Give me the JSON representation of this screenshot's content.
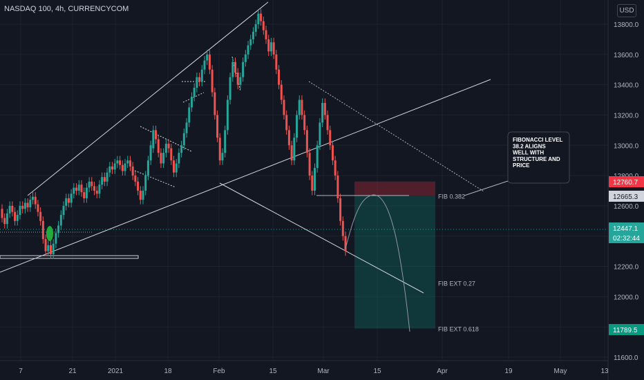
{
  "header": {
    "title": "NASDAQ 100, 4h, CURRENCYCOM",
    "currency": "USD"
  },
  "chart_data": {
    "type": "candlestick",
    "ylim": [
      11600,
      13900
    ],
    "y_ticks": [
      11600,
      11800,
      12000,
      12200,
      12400,
      12600,
      12800,
      13000,
      13200,
      13400,
      13600,
      13800
    ],
    "x_ticks": [
      "7",
      "21",
      "2021",
      "18",
      "Feb",
      "15",
      "Mar",
      "15",
      "Apr",
      "19",
      "May",
      "13"
    ],
    "price_labels": [
      {
        "value": "12760.7",
        "color": "#f23645"
      },
      {
        "value": "12665.3",
        "color": "#d1d4dc"
      },
      {
        "value": "12447.1",
        "time": "02:32:44",
        "color": "#26a69a"
      },
      {
        "value": "11789.5",
        "color": "#089981"
      }
    ],
    "annotations": [
      {
        "text": "FIB 0.382",
        "price": 12665
      },
      {
        "text": "FIB EXT 0.27",
        "price": 12090
      },
      {
        "text": "FIB EXT 0.618",
        "price": 11790
      }
    ],
    "callout": "FIBONACCI LEVEL 38.2 ALIGNS WELL WITH STRUCTURE AND PRICE",
    "position": {
      "stop": 12760.7,
      "entry": 12665.3,
      "target": 11789.5
    },
    "candles": [
      [
        12580,
        12520
      ],
      [
        12520,
        12480
      ],
      [
        12480,
        12550
      ],
      [
        12550,
        12600
      ],
      [
        12600,
        12560
      ],
      [
        12560,
        12500
      ],
      [
        12500,
        12540
      ],
      [
        12540,
        12600
      ],
      [
        12600,
        12580
      ],
      [
        12580,
        12620
      ],
      [
        12620,
        12590
      ],
      [
        12590,
        12640
      ],
      [
        12640,
        12660
      ],
      [
        12660,
        12610
      ],
      [
        12610,
        12560
      ],
      [
        12560,
        12500
      ],
      [
        12500,
        12380
      ],
      [
        12380,
        12300
      ],
      [
        12300,
        12340
      ],
      [
        12340,
        12280
      ],
      [
        12280,
        12350
      ],
      [
        12350,
        12420
      ],
      [
        12420,
        12470
      ],
      [
        12470,
        12540
      ],
      [
        12540,
        12600
      ],
      [
        12600,
        12650
      ],
      [
        12650,
        12620
      ],
      [
        12620,
        12680
      ],
      [
        12680,
        12720
      ],
      [
        12720,
        12700
      ],
      [
        12700,
        12740
      ],
      [
        12740,
        12690
      ],
      [
        12690,
        12650
      ],
      [
        12650,
        12720
      ],
      [
        12720,
        12760
      ],
      [
        12760,
        12730
      ],
      [
        12730,
        12700
      ],
      [
        12700,
        12680
      ],
      [
        12680,
        12740
      ],
      [
        12740,
        12790
      ],
      [
        12790,
        12760
      ],
      [
        12760,
        12820
      ],
      [
        12820,
        12860
      ],
      [
        12860,
        12840
      ],
      [
        12840,
        12880
      ],
      [
        12880,
        12900
      ],
      [
        12900,
        12870
      ],
      [
        12870,
        12830
      ],
      [
        12830,
        12880
      ],
      [
        12880,
        12900
      ],
      [
        12900,
        12860
      ],
      [
        12860,
        12800
      ],
      [
        12800,
        12760
      ],
      [
        12760,
        12700
      ],
      [
        12700,
        12640
      ],
      [
        12640,
        12700
      ],
      [
        12700,
        12800
      ],
      [
        12800,
        12900
      ],
      [
        12900,
        13000
      ],
      [
        12980,
        13100
      ],
      [
        13100,
        13040
      ],
      [
        13040,
        12950
      ],
      [
        12950,
        12880
      ],
      [
        12880,
        12950
      ],
      [
        12950,
        13010
      ],
      [
        13010,
        12980
      ],
      [
        12980,
        12900
      ],
      [
        12900,
        12820
      ],
      [
        12820,
        12880
      ],
      [
        12880,
        12950
      ],
      [
        12950,
        13000
      ],
      [
        13000,
        13080
      ],
      [
        13080,
        13150
      ],
      [
        13150,
        13250
      ],
      [
        13250,
        13320
      ],
      [
        13320,
        13380
      ],
      [
        13380,
        13450
      ],
      [
        13450,
        13420
      ],
      [
        13420,
        13500
      ],
      [
        13500,
        13560
      ],
      [
        13560,
        13600
      ],
      [
        13600,
        13500
      ],
      [
        13500,
        13350
      ],
      [
        13350,
        13200
      ],
      [
        13200,
        13050
      ],
      [
        13050,
        12900
      ],
      [
        12900,
        12950
      ],
      [
        12950,
        13100
      ],
      [
        13100,
        13300
      ],
      [
        13300,
        13450
      ],
      [
        13450,
        13550
      ],
      [
        13550,
        13480
      ],
      [
        13480,
        13400
      ],
      [
        13400,
        13450
      ],
      [
        13450,
        13550
      ],
      [
        13550,
        13600
      ],
      [
        13600,
        13660
      ],
      [
        13660,
        13700
      ],
      [
        13700,
        13750
      ],
      [
        13750,
        13800
      ],
      [
        13800,
        13870
      ],
      [
        13870,
        13820
      ],
      [
        13820,
        13760
      ],
      [
        13760,
        13700
      ],
      [
        13700,
        13620
      ],
      [
        13620,
        13680
      ],
      [
        13680,
        13600
      ],
      [
        13600,
        13500
      ],
      [
        13500,
        13400
      ],
      [
        13400,
        13300
      ],
      [
        13300,
        13200
      ],
      [
        13200,
        13100
      ],
      [
        13100,
        13000
      ],
      [
        13000,
        12900
      ],
      [
        12900,
        13050
      ],
      [
        13050,
        13200
      ],
      [
        13200,
        13300
      ],
      [
        13300,
        13200
      ],
      [
        13200,
        13100
      ],
      [
        13100,
        12950
      ],
      [
        12950,
        12800
      ],
      [
        12800,
        12700
      ],
      [
        12700,
        12850
      ],
      [
        12850,
        13000
      ],
      [
        13000,
        13150
      ],
      [
        13150,
        13280
      ],
      [
        13280,
        13200
      ],
      [
        13200,
        13100
      ],
      [
        13100,
        13000
      ],
      [
        13000,
        12900
      ],
      [
        12900,
        12800
      ],
      [
        12800,
        12650
      ],
      [
        12650,
        12500
      ],
      [
        12500,
        12400
      ],
      [
        12400,
        12300
      ]
    ]
  }
}
